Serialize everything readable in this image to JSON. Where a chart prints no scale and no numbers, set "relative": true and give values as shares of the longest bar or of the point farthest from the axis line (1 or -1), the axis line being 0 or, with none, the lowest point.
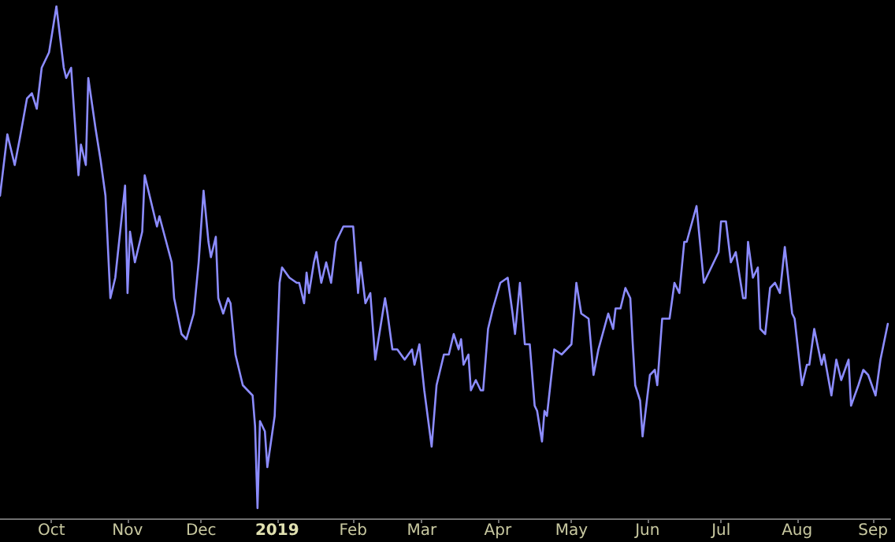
{
  "chart_data": {
    "type": "line",
    "relative": true,
    "xlim": [
      "2018-09-10",
      "2019-09-08"
    ],
    "xticks": [
      {
        "value": "2018-10-01",
        "label": "Oct"
      },
      {
        "value": "2018-11-01",
        "label": "Nov"
      },
      {
        "value": "2018-12-01",
        "label": "Dec"
      },
      {
        "value": "2019-01-01",
        "label": "2019"
      },
      {
        "value": "2019-02-01",
        "label": "Feb"
      },
      {
        "value": "2019-03-01",
        "label": "Mar"
      },
      {
        "value": "2019-04-01",
        "label": "Apr"
      },
      {
        "value": "2019-05-01",
        "label": "May"
      },
      {
        "value": "2019-06-01",
        "label": "Jun"
      },
      {
        "value": "2019-07-01",
        "label": "Jul"
      },
      {
        "value": "2019-08-01",
        "label": "Aug"
      },
      {
        "value": "2019-09-01",
        "label": "Sep"
      }
    ],
    "x": [
      "2018-09-10",
      "2018-09-13",
      "2018-09-16",
      "2018-09-18",
      "2018-09-21",
      "2018-09-23",
      "2018-09-25",
      "2018-09-27",
      "2018-09-30",
      "2018-10-03",
      "2018-10-06",
      "2018-10-07",
      "2018-10-09",
      "2018-10-12",
      "2018-10-13",
      "2018-10-15",
      "2018-10-16",
      "2018-10-19",
      "2018-10-21",
      "2018-10-23",
      "2018-10-25",
      "2018-10-27",
      "2018-10-31",
      "2018-11-01",
      "2018-11-02",
      "2018-11-04",
      "2018-11-07",
      "2018-11-08",
      "2018-11-11",
      "2018-11-13",
      "2018-11-14",
      "2018-11-19",
      "2018-11-20",
      "2018-11-23",
      "2018-11-25",
      "2018-11-28",
      "2018-11-30",
      "2018-12-02",
      "2018-12-04",
      "2018-12-05",
      "2018-12-07",
      "2018-12-08",
      "2018-12-10",
      "2018-12-12",
      "2018-12-13",
      "2018-12-15",
      "2018-12-18",
      "2018-12-20",
      "2018-12-22",
      "2018-12-23",
      "2018-12-24",
      "2018-12-25",
      "2018-12-27",
      "2018-12-28",
      "2018-12-31",
      "2019-01-02",
      "2019-01-03",
      "2019-01-06",
      "2019-01-09",
      "2019-01-10",
      "2019-01-12",
      "2019-01-13",
      "2019-01-14",
      "2019-01-16",
      "2019-01-17",
      "2019-01-19",
      "2019-01-21",
      "2019-01-23",
      "2019-01-25",
      "2019-01-28",
      "2019-02-01",
      "2019-02-03",
      "2019-02-04",
      "2019-02-06",
      "2019-02-08",
      "2019-02-10",
      "2019-02-14",
      "2019-02-15",
      "2019-02-17",
      "2019-02-19",
      "2019-02-22",
      "2019-02-25",
      "2019-02-26",
      "2019-02-28",
      "2019-03-02",
      "2019-03-05",
      "2019-03-07",
      "2019-03-10",
      "2019-03-12",
      "2019-03-14",
      "2019-03-16",
      "2019-03-17",
      "2019-03-18",
      "2019-03-20",
      "2019-03-21",
      "2019-03-23",
      "2019-03-25",
      "2019-03-26",
      "2019-03-28",
      "2019-03-30",
      "2019-04-02",
      "2019-04-05",
      "2019-04-07",
      "2019-04-08",
      "2019-04-10",
      "2019-04-12",
      "2019-04-14",
      "2019-04-16",
      "2019-04-17",
      "2019-04-19",
      "2019-04-20",
      "2019-04-21",
      "2019-04-24",
      "2019-04-27",
      "2019-04-29",
      "2019-05-01",
      "2019-05-03",
      "2019-05-05",
      "2019-05-08",
      "2019-05-10",
      "2019-05-12",
      "2019-05-16",
      "2019-05-18",
      "2019-05-19",
      "2019-05-21",
      "2019-05-23",
      "2019-05-25",
      "2019-05-26",
      "2019-05-27",
      "2019-05-29",
      "2019-05-30",
      "2019-06-02",
      "2019-06-04",
      "2019-06-05",
      "2019-06-07",
      "2019-06-10",
      "2019-06-12",
      "2019-06-14",
      "2019-06-16",
      "2019-06-17",
      "2019-06-21",
      "2019-06-24",
      "2019-06-30",
      "2019-07-01",
      "2019-07-03",
      "2019-07-05",
      "2019-07-07",
      "2019-07-10",
      "2019-07-11",
      "2019-07-12",
      "2019-07-14",
      "2019-07-16",
      "2019-07-17",
      "2019-07-19",
      "2019-07-21",
      "2019-07-23",
      "2019-07-25",
      "2019-07-27",
      "2019-07-30",
      "2019-07-31",
      "2019-08-03",
      "2019-08-05",
      "2019-08-06",
      "2019-08-08",
      "2019-08-11",
      "2019-08-12",
      "2019-08-15",
      "2019-08-17",
      "2019-08-19",
      "2019-08-22",
      "2019-08-23",
      "2019-08-26",
      "2019-08-28",
      "2019-08-30",
      "2019-09-02",
      "2019-09-04",
      "2019-09-07"
    ],
    "series": [
      {
        "color": "#8c8cff",
        "values": [
          0.63,
          0.75,
          0.69,
          0.74,
          0.82,
          0.83,
          0.8,
          0.88,
          0.91,
          1.0,
          0.88,
          0.86,
          0.88,
          0.67,
          0.73,
          0.69,
          0.86,
          0.76,
          0.7,
          0.63,
          0.43,
          0.47,
          0.65,
          0.44,
          0.56,
          0.5,
          0.56,
          0.67,
          0.61,
          0.57,
          0.59,
          0.5,
          0.43,
          0.36,
          0.35,
          0.4,
          0.5,
          0.64,
          0.54,
          0.51,
          0.55,
          0.43,
          0.4,
          0.43,
          0.42,
          0.32,
          0.26,
          0.25,
          0.24,
          0.18,
          0.02,
          0.19,
          0.17,
          0.1,
          0.2,
          0.46,
          0.49,
          0.47,
          0.46,
          0.46,
          0.42,
          0.48,
          0.44,
          0.5,
          0.52,
          0.46,
          0.5,
          0.46,
          0.54,
          0.57,
          0.57,
          0.44,
          0.5,
          0.42,
          0.44,
          0.31,
          0.43,
          0.4,
          0.33,
          0.33,
          0.31,
          0.33,
          0.3,
          0.34,
          0.25,
          0.14,
          0.26,
          0.32,
          0.32,
          0.36,
          0.33,
          0.35,
          0.3,
          0.32,
          0.25,
          0.27,
          0.25,
          0.25,
          0.37,
          0.41,
          0.46,
          0.47,
          0.4,
          0.36,
          0.46,
          0.34,
          0.34,
          0.22,
          0.21,
          0.15,
          0.21,
          0.2,
          0.33,
          0.32,
          0.33,
          0.34,
          0.46,
          0.4,
          0.39,
          0.28,
          0.33,
          0.4,
          0.37,
          0.41,
          0.41,
          0.45,
          0.43,
          0.34,
          0.26,
          0.23,
          0.16,
          0.28,
          0.29,
          0.26,
          0.39,
          0.39,
          0.46,
          0.44,
          0.54,
          0.54,
          0.61,
          0.46,
          0.52,
          0.58,
          0.58,
          0.5,
          0.52,
          0.43,
          0.43,
          0.54,
          0.47,
          0.49,
          0.37,
          0.36,
          0.45,
          0.46,
          0.44,
          0.53,
          0.4,
          0.39,
          0.26,
          0.3,
          0.3,
          0.37,
          0.3,
          0.32,
          0.24,
          0.31,
          0.27,
          0.31,
          0.22,
          0.26,
          0.29,
          0.28,
          0.24,
          0.31,
          0.38
        ]
      }
    ],
    "grid": false,
    "marker": "none",
    "line_style": "solid"
  }
}
